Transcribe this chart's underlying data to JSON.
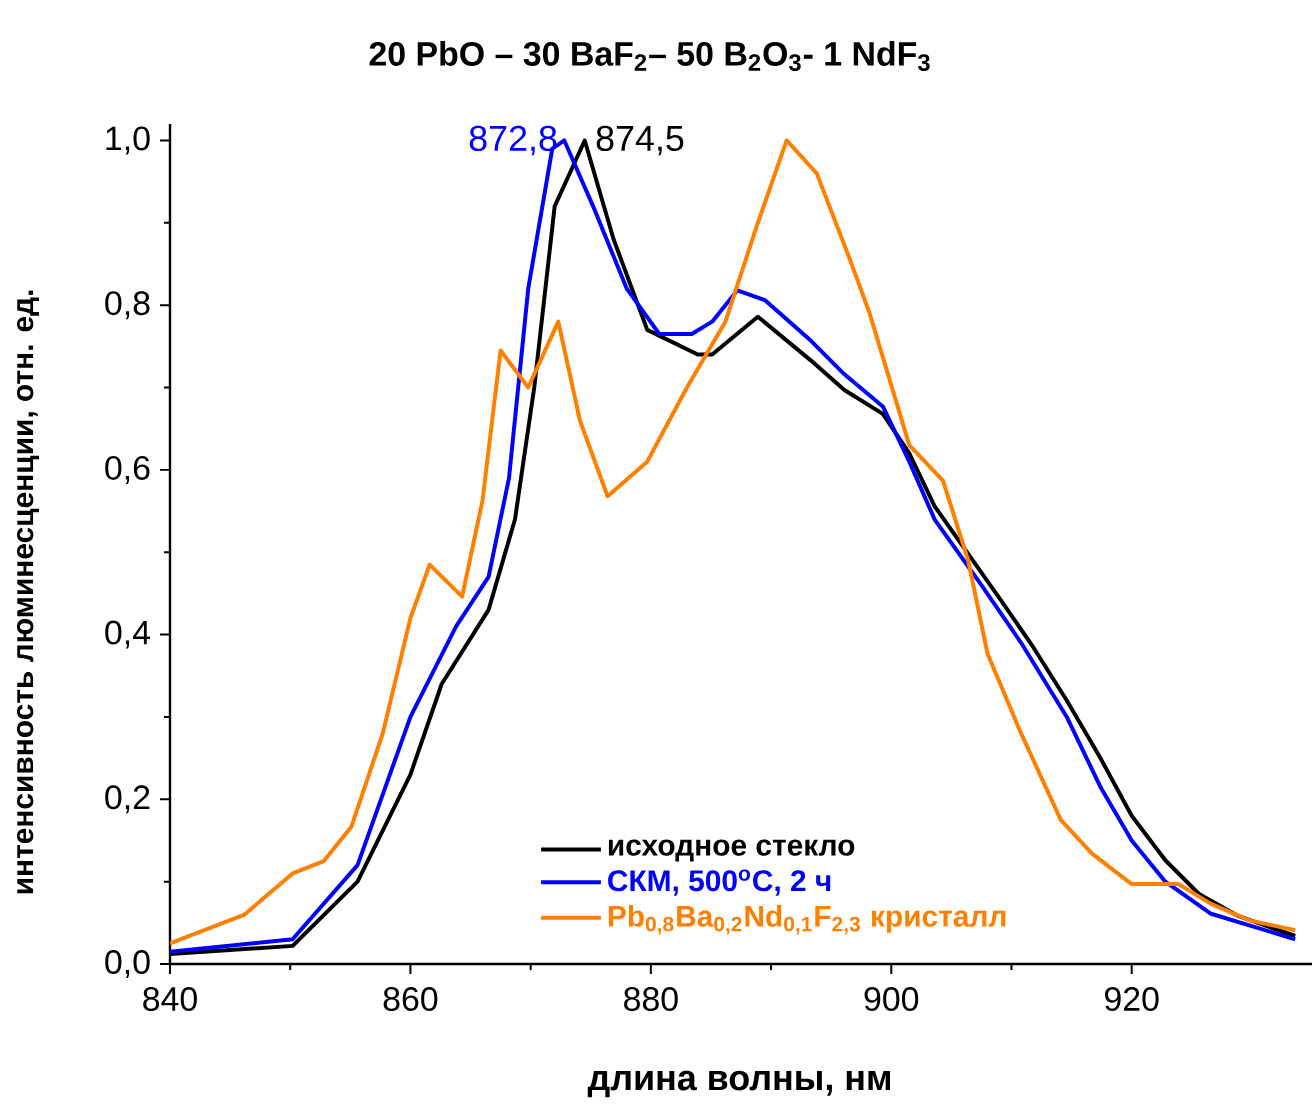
{
  "chart_data": {
    "type": "line",
    "title": "20 PbO – 30 BaF$_{2}$–  50 B$_{2}$O$_{3}$- 1 NdF$_{3}$",
    "xlabel": "длина волны, нм",
    "ylabel": "интенсивность люминесценции, отн. ед.",
    "xlim": [
      840,
      935
    ],
    "ylim": [
      0,
      1.02
    ],
    "xticks": [
      840,
      860,
      880,
      900,
      920
    ],
    "yticks": [
      {
        "value": 0,
        "label": "0,0"
      },
      {
        "value": 0.2,
        "label": "0,2"
      },
      {
        "value": 0.4,
        "label": "0,4"
      },
      {
        "value": 0.6,
        "label": "0,6"
      },
      {
        "value": 0.8,
        "label": "0,8"
      },
      {
        "value": 1.0,
        "label": "1,0"
      }
    ],
    "grid": false,
    "legend": "bottom",
    "marker": "none",
    "line_style": "solid",
    "annotations": [
      {
        "text": "872,8",
        "x": 872.8,
        "y": 1.0
      },
      {
        "text": "874,5",
        "x": 874.5,
        "y": 1.0
      }
    ],
    "series": [
      {
        "name": "исходное стекло",
        "color": "#000000",
        "x": [
          840,
          850.2,
          855.6,
          860,
          862.6,
          866.5,
          868.7,
          870.3,
          872,
          874.5,
          876.9,
          879.7,
          883.9,
          885.1,
          888.9,
          893.3,
          896.1,
          899.3,
          901.5,
          903.6,
          909.2,
          911.8,
          914.6,
          917.4,
          920,
          922.8,
          925.6,
          928.9,
          933.6
        ],
        "values": [
          0.012,
          0.022,
          0.1,
          0.23,
          0.34,
          0.43,
          0.54,
          0.7,
          0.92,
          1.0,
          0.88,
          0.77,
          0.74,
          0.74,
          0.786,
          0.733,
          0.697,
          0.668,
          0.62,
          0.556,
          0.44,
          0.385,
          0.32,
          0.25,
          0.18,
          0.126,
          0.085,
          0.058,
          0.034
        ]
      },
      {
        "name": "СКМ, 500$^{o}$C, 2 ч",
        "color": "#0000ff",
        "x": [
          840,
          850.2,
          855.6,
          860,
          863.8,
          866.5,
          868.2,
          869.8,
          871.8,
          872.8,
          875.2,
          878,
          880.7,
          883.4,
          885.1,
          887.2,
          889.5,
          893.3,
          896.1,
          899.3,
          901.5,
          903.6,
          907.5,
          910.8,
          914.6,
          917.4,
          920,
          922.8,
          926.6,
          933.6
        ],
        "values": [
          0.015,
          0.03,
          0.12,
          0.3,
          0.41,
          0.47,
          0.59,
          0.82,
          0.99,
          1.0,
          0.92,
          0.82,
          0.765,
          0.765,
          0.78,
          0.818,
          0.806,
          0.757,
          0.716,
          0.677,
          0.61,
          0.54,
          0.46,
          0.39,
          0.3,
          0.215,
          0.15,
          0.1,
          0.061,
          0.03
        ]
      },
      {
        "name": "Pb$_{0,8}$Ba$_{0,2}$Nd$_{0,1}$F$_{2,3}$ кристалл",
        "color": "#ff7f00",
        "x": [
          840,
          846.2,
          850.2,
          852.8,
          855.1,
          857.7,
          860,
          861.6,
          864.3,
          866,
          867.5,
          869.8,
          872.3,
          874.1,
          876.4,
          879.7,
          883,
          886.2,
          888.9,
          891.3,
          893.8,
          896.6,
          898.2,
          901.5,
          904.3,
          906.4,
          908,
          910.8,
          914.1,
          916.7,
          920,
          923.9,
          926.6,
          929.8,
          933.6
        ],
        "values": [
          0.025,
          0.06,
          0.11,
          0.125,
          0.167,
          0.28,
          0.42,
          0.485,
          0.446,
          0.563,
          0.745,
          0.7,
          0.78,
          0.66,
          0.568,
          0.61,
          0.7,
          0.78,
          0.9,
          1.0,
          0.96,
          0.854,
          0.79,
          0.63,
          0.587,
          0.49,
          0.377,
          0.28,
          0.175,
          0.134,
          0.097,
          0.097,
          0.073,
          0.053,
          0.041
        ]
      }
    ]
  }
}
